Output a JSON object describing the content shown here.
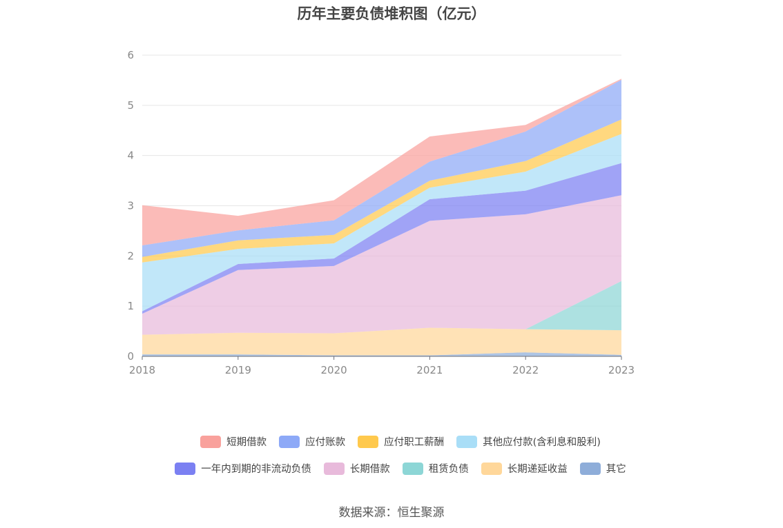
{
  "chart_data": {
    "type": "area",
    "stacked": true,
    "title": "历年主要负债堆积图（亿元）",
    "x": [
      "2018",
      "2019",
      "2020",
      "2021",
      "2022",
      "2023"
    ],
    "ylim": [
      0,
      6
    ],
    "yticks": [
      "0",
      "1",
      "2",
      "3",
      "4",
      "5",
      "6"
    ],
    "grid": true,
    "legend_position": "bottom",
    "series": [
      {
        "name": "其它",
        "color": "#8EADD9",
        "values": [
          0.04,
          0.04,
          0.02,
          0.02,
          0.08,
          0.03
        ]
      },
      {
        "name": "长期递延收益",
        "color": "#FFD79A",
        "values": [
          0.39,
          0.43,
          0.44,
          0.55,
          0.46,
          0.49
        ]
      },
      {
        "name": "租赁负债",
        "color": "#8DD6D6",
        "values": [
          0.0,
          0.0,
          0.0,
          0.0,
          0.0,
          0.98
        ]
      },
      {
        "name": "长期借款",
        "color": "#E8BADB",
        "values": [
          0.42,
          1.25,
          1.34,
          2.13,
          2.29,
          1.71
        ]
      },
      {
        "name": "一年内到期的非流动负债",
        "color": "#7B80F2",
        "values": [
          0.05,
          0.12,
          0.15,
          0.43,
          0.47,
          0.64
        ]
      },
      {
        "name": "其他应付款(含利息和股利)",
        "color": "#A9DEF7",
        "values": [
          0.97,
          0.3,
          0.3,
          0.23,
          0.38,
          0.58
        ]
      },
      {
        "name": "应付职工薪酬",
        "color": "#FFC94D",
        "values": [
          0.11,
          0.17,
          0.17,
          0.14,
          0.21,
          0.29
        ]
      },
      {
        "name": "应付账款",
        "color": "#8DA9F7",
        "values": [
          0.23,
          0.2,
          0.29,
          0.38,
          0.59,
          0.79
        ]
      },
      {
        "name": "短期借款",
        "color": "#F9A19C",
        "values": [
          0.8,
          0.29,
          0.4,
          0.5,
          0.13,
          0.02
        ]
      }
    ],
    "legend_order": [
      [
        "短期借款",
        "应付账款",
        "应付职工薪酬",
        "其他应付款(含利息和股利)"
      ],
      [
        "一年内到期的非流动负债",
        "长期借款",
        "租赁负债",
        "长期递延收益",
        "其它"
      ]
    ]
  },
  "source_note": "数据来源：恒生聚源"
}
